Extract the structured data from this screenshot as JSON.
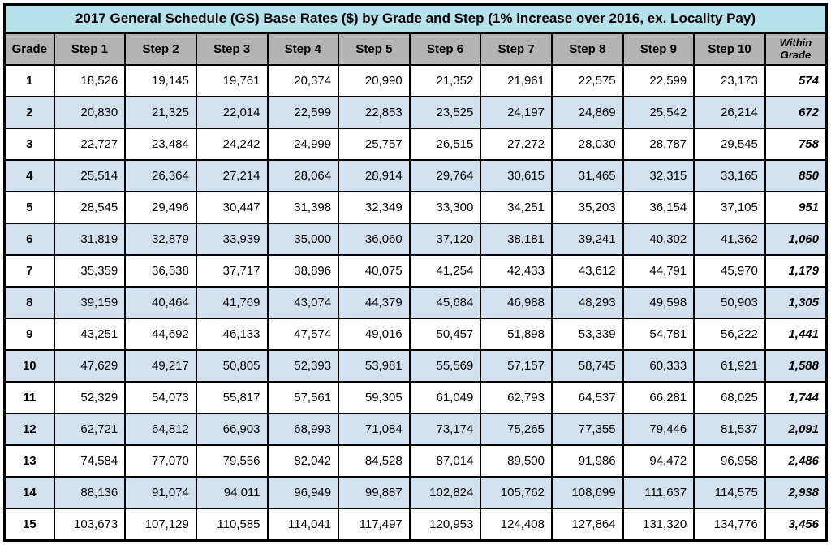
{
  "table": {
    "title": "2017 General Schedule (GS) Base Rates ($) by Grade and Step (1% increase over 2016, ex. Locality Pay)",
    "title_bg": "#b7e1eb",
    "header_bg": "#b3b3b3",
    "row_even_bg": "#ffffff",
    "row_odd_bg": "#d3e1ee",
    "border_color": "#000000",
    "font_family": "Arial",
    "title_fontsize": 17,
    "header_fontsize": 15,
    "cell_fontsize": 15,
    "columns": {
      "grade": "Grade",
      "steps": [
        "Step 1",
        "Step 2",
        "Step 3",
        "Step 4",
        "Step 5",
        "Step 6",
        "Step 7",
        "Step 8",
        "Step 9",
        "Step 10"
      ],
      "within": "Within Grade"
    },
    "col_widths": {
      "grade": 60,
      "step": 86,
      "within": 74
    },
    "rows": [
      {
        "grade": "1",
        "steps": [
          "18,526",
          "19,145",
          "19,761",
          "20,374",
          "20,990",
          "21,352",
          "21,961",
          "22,575",
          "22,599",
          "23,173"
        ],
        "within": "574"
      },
      {
        "grade": "2",
        "steps": [
          "20,830",
          "21,325",
          "22,014",
          "22,599",
          "22,853",
          "23,525",
          "24,197",
          "24,869",
          "25,542",
          "26,214"
        ],
        "within": "672"
      },
      {
        "grade": "3",
        "steps": [
          "22,727",
          "23,484",
          "24,242",
          "24,999",
          "25,757",
          "26,515",
          "27,272",
          "28,030",
          "28,787",
          "29,545"
        ],
        "within": "758"
      },
      {
        "grade": "4",
        "steps": [
          "25,514",
          "26,364",
          "27,214",
          "28,064",
          "28,914",
          "29,764",
          "30,615",
          "31,465",
          "32,315",
          "33,165"
        ],
        "within": "850"
      },
      {
        "grade": "5",
        "steps": [
          "28,545",
          "29,496",
          "30,447",
          "31,398",
          "32,349",
          "33,300",
          "34,251",
          "35,203",
          "36,154",
          "37,105"
        ],
        "within": "951"
      },
      {
        "grade": "6",
        "steps": [
          "31,819",
          "32,879",
          "33,939",
          "35,000",
          "36,060",
          "37,120",
          "38,181",
          "39,241",
          "40,302",
          "41,362"
        ],
        "within": "1,060"
      },
      {
        "grade": "7",
        "steps": [
          "35,359",
          "36,538",
          "37,717",
          "38,896",
          "40,075",
          "41,254",
          "42,433",
          "43,612",
          "44,791",
          "45,970"
        ],
        "within": "1,179"
      },
      {
        "grade": "8",
        "steps": [
          "39,159",
          "40,464",
          "41,769",
          "43,074",
          "44,379",
          "45,684",
          "46,988",
          "48,293",
          "49,598",
          "50,903"
        ],
        "within": "1,305"
      },
      {
        "grade": "9",
        "steps": [
          "43,251",
          "44,692",
          "46,133",
          "47,574",
          "49,016",
          "50,457",
          "51,898",
          "53,339",
          "54,781",
          "56,222"
        ],
        "within": "1,441"
      },
      {
        "grade": "10",
        "steps": [
          "47,629",
          "49,217",
          "50,805",
          "52,393",
          "53,981",
          "55,569",
          "57,157",
          "58,745",
          "60,333",
          "61,921"
        ],
        "within": "1,588"
      },
      {
        "grade": "11",
        "steps": [
          "52,329",
          "54,073",
          "55,817",
          "57,561",
          "59,305",
          "61,049",
          "62,793",
          "64,537",
          "66,281",
          "68,025"
        ],
        "within": "1,744"
      },
      {
        "grade": "12",
        "steps": [
          "62,721",
          "64,812",
          "66,903",
          "68,993",
          "71,084",
          "73,174",
          "75,265",
          "77,355",
          "79,446",
          "81,537"
        ],
        "within": "2,091"
      },
      {
        "grade": "13",
        "steps": [
          "74,584",
          "77,070",
          "79,556",
          "82,042",
          "84,528",
          "87,014",
          "89,500",
          "91,986",
          "94,472",
          "96,958"
        ],
        "within": "2,486"
      },
      {
        "grade": "14",
        "steps": [
          "88,136",
          "91,074",
          "94,011",
          "96,949",
          "99,887",
          "102,824",
          "105,762",
          "108,699",
          "111,637",
          "114,575"
        ],
        "within": "2,938"
      },
      {
        "grade": "15",
        "steps": [
          "103,673",
          "107,129",
          "110,585",
          "114,041",
          "117,497",
          "120,953",
          "124,408",
          "127,864",
          "131,320",
          "134,776"
        ],
        "within": "3,456"
      }
    ]
  }
}
